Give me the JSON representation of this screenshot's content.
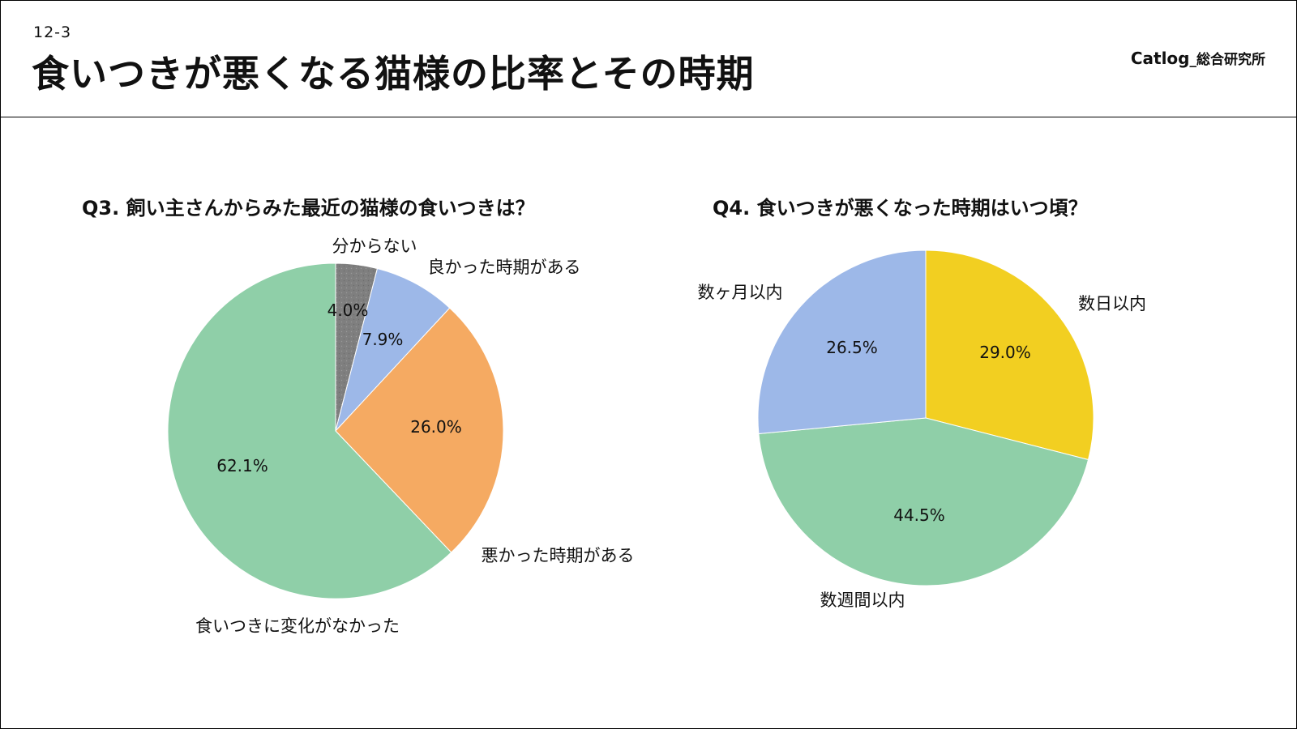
{
  "header": {
    "page_number": "12-3",
    "title": "食いつきが悪くなる猫様の比率とその時期",
    "brand": "Catlog",
    "brand_sub": "_総合研究所"
  },
  "chart_data": [
    {
      "type": "pie",
      "title": "Q3. 飼い主さんからみた最近の猫様の食いつきは？",
      "start_angle": "12 o'clock",
      "direction": "clockwise",
      "slices": [
        {
          "label": "分からない",
          "value": 4.0,
          "value_label": "4.0%",
          "color": "#7f7f7f"
        },
        {
          "label": "良かった時期がある",
          "value": 7.9,
          "value_label": "7.9%",
          "color": "#9db8e8"
        },
        {
          "label": "悪かった時期がある",
          "value": 26.0,
          "value_label": "26.0%",
          "color": "#f5aa62"
        },
        {
          "label": "食いつきに変化がなかった",
          "value": 62.1,
          "value_label": "62.1%",
          "color": "#8fcfa8"
        }
      ]
    },
    {
      "type": "pie",
      "title": "Q4. 食いつきが悪くなった時期はいつ頃？",
      "start_angle": "12 o'clock",
      "direction": "clockwise",
      "slices": [
        {
          "label": "数日以内",
          "value": 29.0,
          "value_label": "29.0%",
          "color": "#f2cf21"
        },
        {
          "label": "数週間以内",
          "value": 44.5,
          "value_label": "44.5%",
          "color": "#8fcfa8"
        },
        {
          "label": "数ヶ月以内",
          "value": 26.5,
          "value_label": "26.5%",
          "color": "#9db8e8"
        }
      ]
    }
  ]
}
